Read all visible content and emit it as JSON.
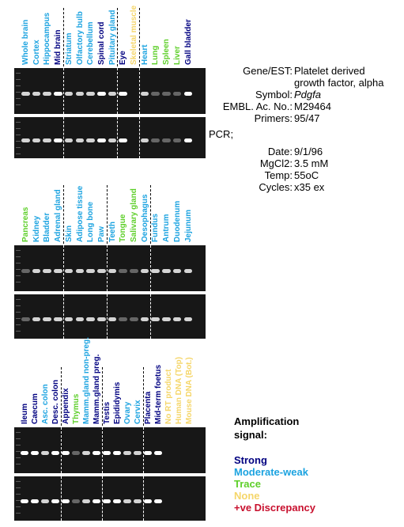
{
  "colors": {
    "strong": "#000080",
    "moderate": "#1ca3e0",
    "trace": "#5ecf2a",
    "none": "#f5d66a",
    "discrepancy": "#c8102e"
  },
  "info": [
    {
      "key": "Gene/EST:",
      "value": "Platelet derived growth factor, alpha"
    },
    {
      "key": "Symbol:",
      "value": "Pdgfa"
    },
    {
      "key": "EMBL. Ac. No.:",
      "value": "M29464"
    },
    {
      "key": "Primers:",
      "value": "95/47"
    },
    {
      "key": "PCR;",
      "value": ""
    },
    {
      "key": "Date:",
      "value": "9/1/96"
    },
    {
      "key": "MgCl2:",
      "value": "3.5 mM"
    },
    {
      "key": "Temp:",
      "value": "55oC"
    },
    {
      "key": "Cycles:",
      "value": "x35 ex"
    }
  ],
  "legend": {
    "title": "Amplification signal:",
    "items": [
      {
        "label": "Strong",
        "level": "strong"
      },
      {
        "label": "Moderate-weak",
        "level": "moderate"
      },
      {
        "label": "Trace",
        "level": "trace"
      },
      {
        "label": "None",
        "level": "none"
      },
      {
        "label": "+ve Discrepancy",
        "level": "discrepancy"
      }
    ]
  },
  "panels": [
    {
      "lanes": [
        {
          "label": "Whole brain",
          "level": "moderate"
        },
        {
          "label": "Cortex",
          "level": "moderate"
        },
        {
          "label": "Hippocampus",
          "level": "moderate"
        },
        {
          "label": "Mid brain",
          "level": "strong"
        },
        {
          "label": "Striatum",
          "level": "moderate"
        },
        {
          "label": "Olfactory bulb",
          "level": "moderate"
        },
        {
          "label": "Cerebellum",
          "level": "moderate"
        },
        {
          "label": "Spinal cord",
          "level": "strong"
        },
        {
          "label": "Pituitary gland",
          "level": "moderate"
        },
        {
          "label": "Eye",
          "level": "strong"
        },
        {
          "label": "Skeletal muscle",
          "level": "none"
        },
        {
          "label": "Heart",
          "level": "moderate"
        },
        {
          "label": "Lung",
          "level": "trace"
        },
        {
          "label": "Spleen",
          "level": "trace"
        },
        {
          "label": "Liver",
          "level": "trace"
        },
        {
          "label": "Gall bladder",
          "level": "strong"
        }
      ],
      "separators_after": [
        3,
        8,
        10
      ]
    },
    {
      "lanes": [
        {
          "label": "Pancreas",
          "level": "trace"
        },
        {
          "label": "Kidney",
          "level": "moderate"
        },
        {
          "label": "Bladder",
          "level": "moderate"
        },
        {
          "label": "Adrenal gland",
          "level": "moderate"
        },
        {
          "label": "Skin",
          "level": "moderate"
        },
        {
          "label": "Adipose tissue",
          "level": "moderate"
        },
        {
          "label": "Long bone",
          "level": "moderate"
        },
        {
          "label": "Paw",
          "level": "moderate"
        },
        {
          "label": "Teeth",
          "level": "moderate"
        },
        {
          "label": "Tongue",
          "level": "trace"
        },
        {
          "label": "Salivary gland",
          "level": "trace"
        },
        {
          "label": "Oesophagus",
          "level": "moderate"
        },
        {
          "label": "Fundus",
          "level": "moderate"
        },
        {
          "label": "Antrum",
          "level": "moderate"
        },
        {
          "label": "Duodenum",
          "level": "moderate"
        },
        {
          "label": "Jejunum",
          "level": "moderate"
        }
      ],
      "separators_after": [
        3,
        7,
        11
      ]
    },
    {
      "lanes": [
        {
          "label": "Ileum",
          "level": "strong"
        },
        {
          "label": "Caecum",
          "level": "strong"
        },
        {
          "label": "Asc. colon",
          "level": "moderate"
        },
        {
          "label": "Desc. colon",
          "level": "strong"
        },
        {
          "label": "Appendix",
          "level": "strong"
        },
        {
          "label": "Thymus",
          "level": "trace"
        },
        {
          "label": "Mamm.gland non-preg.",
          "level": "moderate"
        },
        {
          "label": "Mamm.gland preg.",
          "level": "strong"
        },
        {
          "label": "Testis",
          "level": "strong"
        },
        {
          "label": "Epididymis",
          "level": "strong"
        },
        {
          "label": "Ovary",
          "level": "moderate"
        },
        {
          "label": "Cervix",
          "level": "moderate"
        },
        {
          "label": "Placenta",
          "level": "strong"
        },
        {
          "label": "Mid-term foetus",
          "level": "strong"
        },
        {
          "label": "No RT product",
          "level": "none"
        },
        {
          "label": "Human DNA (Top)",
          "level": "none"
        },
        {
          "label": "Mouse DNA (Bot.)",
          "level": "none"
        }
      ],
      "separators_after": [
        3,
        7,
        11
      ]
    }
  ]
}
